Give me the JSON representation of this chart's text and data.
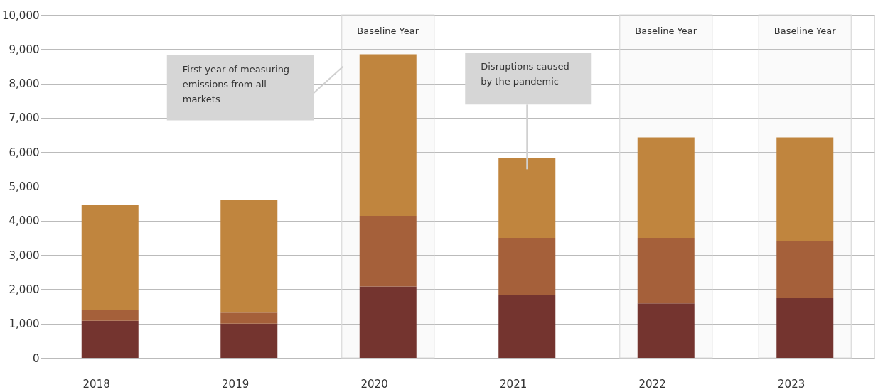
{
  "chart_data": {
    "type": "bar",
    "stacked": true,
    "categories": [
      "2018",
      "2019",
      "2020",
      "2021",
      "2022",
      "2023"
    ],
    "series": [
      {
        "color": "#74342f",
        "values": [
          1080,
          1000,
          2080,
          1830,
          1590,
          1740
        ]
      },
      {
        "color": "#a5603a",
        "values": [
          320,
          320,
          2060,
          1670,
          1910,
          1660
        ]
      },
      {
        "color": "#c0853e",
        "values": [
          3060,
          3290,
          4710,
          2340,
          2930,
          3030
        ]
      }
    ],
    "ylim": [
      0,
      10000
    ],
    "yticks": [
      {
        "value": 0,
        "label": "0"
      },
      {
        "value": 1000,
        "label": "1,000"
      },
      {
        "value": 2000,
        "label": "2,000"
      },
      {
        "value": 3000,
        "label": "3,000"
      },
      {
        "value": 4000,
        "label": "4,000"
      },
      {
        "value": 5000,
        "label": "5,000"
      },
      {
        "value": 6000,
        "label": "6,000"
      },
      {
        "value": 7000,
        "label": "7,000"
      },
      {
        "value": 8000,
        "label": "8,000"
      },
      {
        "value": 9000,
        "label": "9,000"
      },
      {
        "value": 10000,
        "label": "10,000"
      }
    ],
    "grid": "y",
    "bands": [
      {
        "axis": "x",
        "from": "2020",
        "to": "2020",
        "label": "Baseline Year",
        "color": "#d9d9d9"
      },
      {
        "axis": "x",
        "from": "2022",
        "to": "2022",
        "label": "Baseline Year",
        "color": "#d9d9d9"
      },
      {
        "axis": "x",
        "from": "2023",
        "to": "2023",
        "label": "Baseline Year",
        "color": "#d9d9d9"
      }
    ],
    "annotations": [
      "First year of measuring\nemissions from all\nmarkets",
      "Disruptions caused\nby the pandemic"
    ]
  }
}
